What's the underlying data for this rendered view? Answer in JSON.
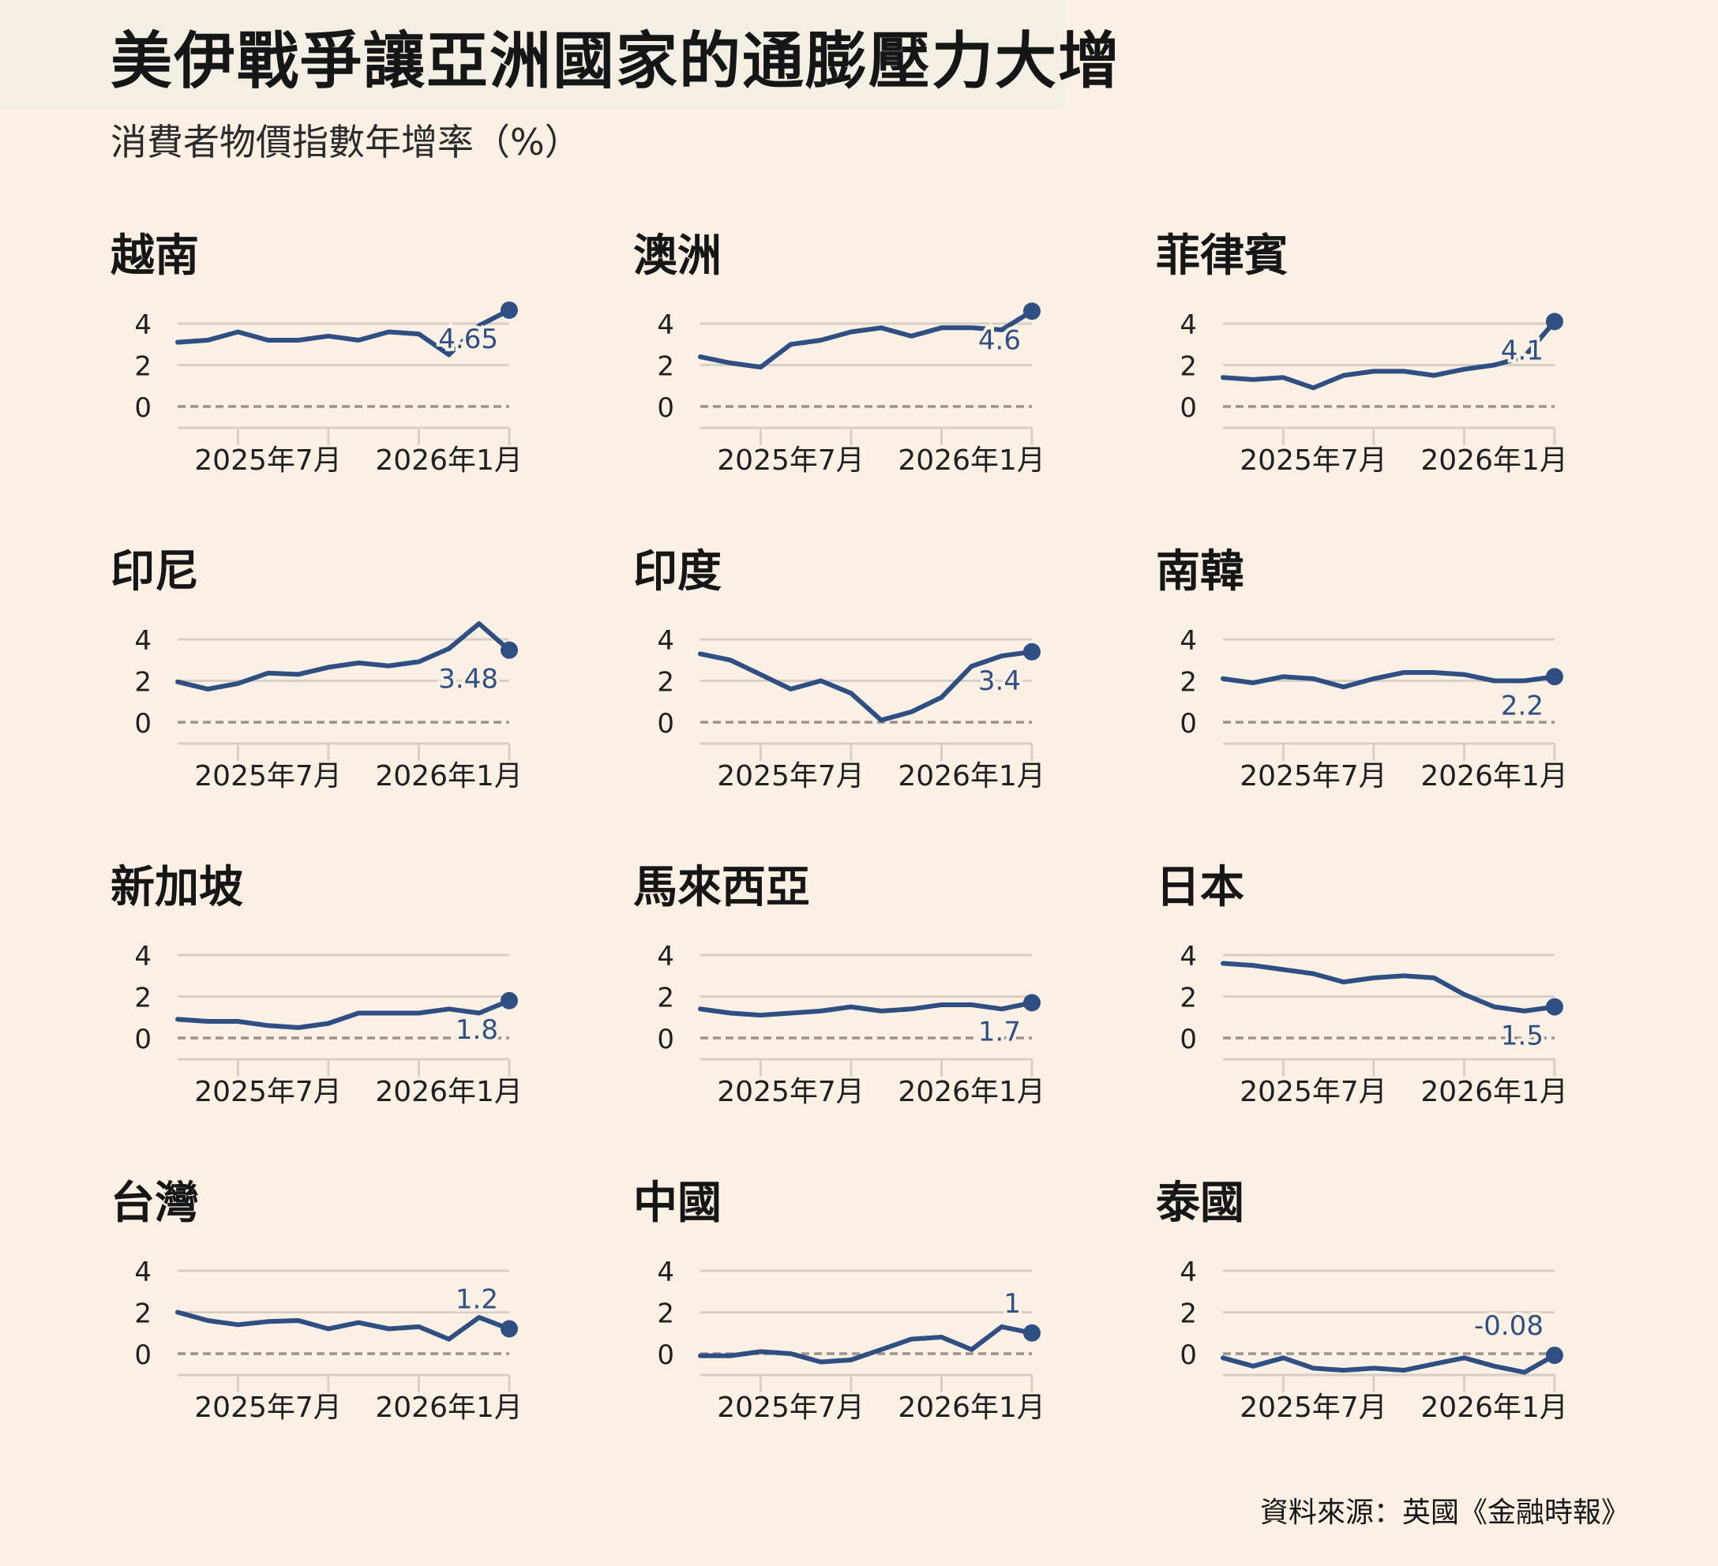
{
  "header": {
    "title": "美伊戰爭讓亞洲國家的通膨壓力大增",
    "subtitle": "消費者物價指數年增率（%）"
  },
  "footer": {
    "source": "資料來源：英國《金融時報》"
  },
  "colors": {
    "background": "#fbf0e4",
    "title_band": "#f4efe5",
    "line": "#2f4f82",
    "gridline": "#d6cfc6",
    "zero_line": "#9a948d",
    "axis_text": "#1f1f1f"
  },
  "chart_data": [
    {
      "type": "line",
      "title": "越南",
      "x": [
        "2025年4月",
        "2025年5月",
        "2025年6月",
        "2025年7月",
        "2025年8月",
        "2025年9月",
        "2025年10月",
        "2025年11月",
        "2025年12月",
        "2026年1月",
        "2026年2月",
        "2026年3月"
      ],
      "values": [
        3.1,
        3.2,
        3.6,
        3.2,
        3.2,
        3.4,
        3.2,
        3.6,
        3.5,
        2.5,
        3.9,
        4.65
      ],
      "end_label": "4.65",
      "ylim": [
        -1,
        4.8
      ],
      "yticks": [
        0,
        2,
        4
      ],
      "xticks": [
        "2025年7月",
        "2026年1月"
      ],
      "grid": true
    },
    {
      "type": "line",
      "title": "澳洲",
      "x": [
        "2025年4月",
        "2025年5月",
        "2025年6月",
        "2025年7月",
        "2025年8月",
        "2025年9月",
        "2025年10月",
        "2025年11月",
        "2025年12月",
        "2026年1月",
        "2026年2月",
        "2026年3月"
      ],
      "values": [
        2.4,
        2.1,
        1.9,
        3.0,
        3.2,
        3.6,
        3.8,
        3.4,
        3.8,
        3.8,
        3.7,
        4.6
      ],
      "end_label": "4.6",
      "ylim": [
        -1,
        4.8
      ],
      "yticks": [
        0,
        2,
        4
      ],
      "xticks": [
        "2025年7月",
        "2026年1月"
      ],
      "grid": true
    },
    {
      "type": "line",
      "title": "菲律賓",
      "x": [
        "2025年4月",
        "2025年5月",
        "2025年6月",
        "2025年7月",
        "2025年8月",
        "2025年9月",
        "2025年10月",
        "2025年11月",
        "2025年12月",
        "2026年1月",
        "2026年2月",
        "2026年3月"
      ],
      "values": [
        1.4,
        1.3,
        1.4,
        0.9,
        1.5,
        1.7,
        1.7,
        1.5,
        1.8,
        2.0,
        2.4,
        4.1
      ],
      "end_label": "4.1",
      "ylim": [
        -1,
        4.8
      ],
      "yticks": [
        0,
        2,
        4
      ],
      "xticks": [
        "2025年7月",
        "2026年1月"
      ],
      "grid": true
    },
    {
      "type": "line",
      "title": "印尼",
      "x": [
        "2025年4月",
        "2025年5月",
        "2025年6月",
        "2025年7月",
        "2025年8月",
        "2025年9月",
        "2025年10月",
        "2025年11月",
        "2025年12月",
        "2026年1月",
        "2026年2月",
        "2026年3月"
      ],
      "values": [
        1.95,
        1.6,
        1.87,
        2.37,
        2.31,
        2.65,
        2.86,
        2.72,
        2.92,
        3.55,
        4.76,
        3.48
      ],
      "end_label": "3.48",
      "ylim": [
        -1,
        4.8
      ],
      "yticks": [
        0,
        2,
        4
      ],
      "xticks": [
        "2025年7月",
        "2026年1月"
      ],
      "grid": true
    },
    {
      "type": "line",
      "title": "印度",
      "x": [
        "2025年4月",
        "2025年5月",
        "2025年6月",
        "2025年7月",
        "2025年8月",
        "2025年9月",
        "2025年10月",
        "2025年11月",
        "2025年12月",
        "2026年1月",
        "2026年2月",
        "2026年3月"
      ],
      "values": [
        3.3,
        3.0,
        2.3,
        1.6,
        2.0,
        1.4,
        0.1,
        0.5,
        1.2,
        2.7,
        3.2,
        3.4
      ],
      "end_label": "3.4",
      "ylim": [
        -1,
        4.8
      ],
      "yticks": [
        0,
        2,
        4
      ],
      "xticks": [
        "2025年7月",
        "2026年1月"
      ],
      "grid": true
    },
    {
      "type": "line",
      "title": "南韓",
      "x": [
        "2025年4月",
        "2025年5月",
        "2025年6月",
        "2025年7月",
        "2025年8月",
        "2025年9月",
        "2025年10月",
        "2025年11月",
        "2025年12月",
        "2026年1月",
        "2026年2月",
        "2026年3月"
      ],
      "values": [
        2.1,
        1.9,
        2.2,
        2.1,
        1.7,
        2.1,
        2.4,
        2.4,
        2.3,
        2.0,
        2.0,
        2.2
      ],
      "end_label": "2.2",
      "ylim": [
        -1,
        4.8
      ],
      "yticks": [
        0,
        2,
        4
      ],
      "xticks": [
        "2025年7月",
        "2026年1月"
      ],
      "grid": true
    },
    {
      "type": "line",
      "title": "新加坡",
      "x": [
        "2025年4月",
        "2025年5月",
        "2025年6月",
        "2025年7月",
        "2025年8月",
        "2025年9月",
        "2025年10月",
        "2025年11月",
        "2025年12月",
        "2026年1月",
        "2026年2月",
        "2026年3月"
      ],
      "values": [
        0.9,
        0.8,
        0.8,
        0.6,
        0.5,
        0.7,
        1.2,
        1.2,
        1.2,
        1.4,
        1.2,
        1.8
      ],
      "end_label": "1.8",
      "ylim": [
        -1,
        4.8
      ],
      "yticks": [
        0,
        2,
        4
      ],
      "xticks": [
        "2025年7月",
        "2026年1月"
      ],
      "grid": true
    },
    {
      "type": "line",
      "title": "馬來西亞",
      "x": [
        "2025年4月",
        "2025年5月",
        "2025年6月",
        "2025年7月",
        "2025年8月",
        "2025年9月",
        "2025年10月",
        "2025年11月",
        "2025年12月",
        "2026年1月",
        "2026年2月",
        "2026年3月"
      ],
      "values": [
        1.4,
        1.2,
        1.1,
        1.2,
        1.3,
        1.5,
        1.3,
        1.4,
        1.6,
        1.6,
        1.4,
        1.7
      ],
      "end_label": "1.7",
      "ylim": [
        -1,
        4.8
      ],
      "yticks": [
        0,
        2,
        4
      ],
      "xticks": [
        "2025年7月",
        "2026年1月"
      ],
      "grid": true
    },
    {
      "type": "line",
      "title": "日本",
      "x": [
        "2025年4月",
        "2025年5月",
        "2025年6月",
        "2025年7月",
        "2025年8月",
        "2025年9月",
        "2025年10月",
        "2025年11月",
        "2025年12月",
        "2026年1月",
        "2026年2月",
        "2026年3月"
      ],
      "values": [
        3.6,
        3.5,
        3.3,
        3.1,
        2.7,
        2.9,
        3.0,
        2.9,
        2.1,
        1.5,
        1.3,
        1.5
      ],
      "end_label": "1.5",
      "ylim": [
        -1,
        4.8
      ],
      "yticks": [
        0,
        2,
        4
      ],
      "xticks": [
        "2025年7月",
        "2026年1月"
      ],
      "grid": true
    },
    {
      "type": "line",
      "title": "台灣",
      "x": [
        "2025年4月",
        "2025年5月",
        "2025年6月",
        "2025年7月",
        "2025年8月",
        "2025年9月",
        "2025年10月",
        "2025年11月",
        "2025年12月",
        "2026年1月",
        "2026年2月",
        "2026年3月"
      ],
      "values": [
        2.0,
        1.6,
        1.4,
        1.55,
        1.6,
        1.2,
        1.5,
        1.2,
        1.3,
        0.7,
        1.75,
        1.2
      ],
      "end_label": "1.2",
      "ylim": [
        -1,
        4.8
      ],
      "yticks": [
        0,
        2,
        4
      ],
      "xticks": [
        "2025年7月",
        "2026年1月"
      ],
      "grid": true
    },
    {
      "type": "line",
      "title": "中國",
      "x": [
        "2025年4月",
        "2025年5月",
        "2025年6月",
        "2025年7月",
        "2025年8月",
        "2025年9月",
        "2025年10月",
        "2025年11月",
        "2025年12月",
        "2026年1月",
        "2026年2月",
        "2026年3月"
      ],
      "values": [
        -0.1,
        -0.1,
        0.1,
        0.0,
        -0.4,
        -0.3,
        0.2,
        0.7,
        0.8,
        0.2,
        1.3,
        1.0
      ],
      "end_label": "1",
      "ylim": [
        -1,
        4.8
      ],
      "yticks": [
        0,
        2,
        4
      ],
      "xticks": [
        "2025年7月",
        "2026年1月"
      ],
      "grid": true
    },
    {
      "type": "line",
      "title": "泰國",
      "x": [
        "2025年4月",
        "2025年5月",
        "2025年6月",
        "2025年7月",
        "2025年8月",
        "2025年9月",
        "2025年10月",
        "2025年11月",
        "2025年12月",
        "2026年1月",
        "2026年2月",
        "2026年3月"
      ],
      "values": [
        -0.2,
        -0.6,
        -0.2,
        -0.7,
        -0.8,
        -0.7,
        -0.8,
        -0.5,
        -0.2,
        -0.6,
        -0.9,
        -0.08
      ],
      "end_label": "-0.08",
      "ylim": [
        -1,
        4.8
      ],
      "yticks": [
        0,
        2,
        4
      ],
      "xticks": [
        "2025年7月",
        "2026年1月"
      ],
      "grid": true
    }
  ]
}
